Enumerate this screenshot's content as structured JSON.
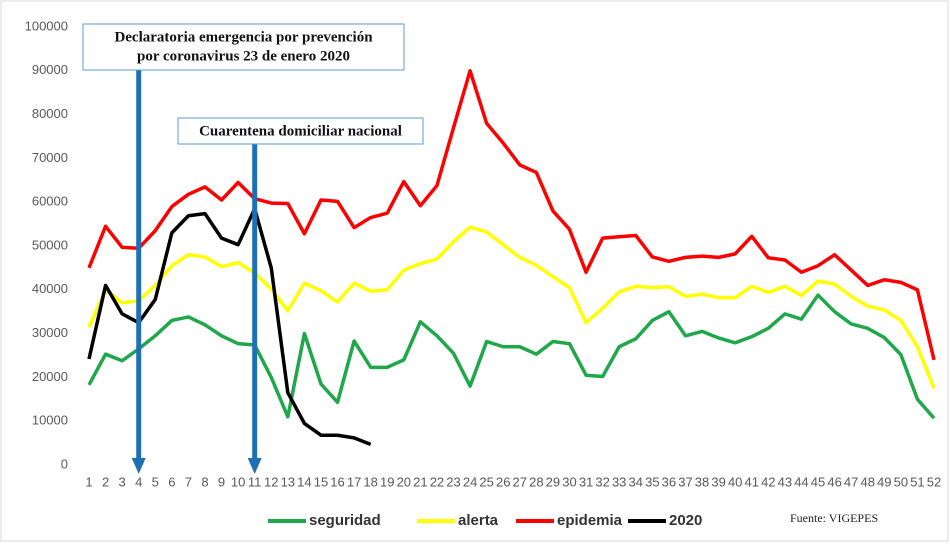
{
  "chart_data": {
    "type": "line",
    "x": [
      1,
      2,
      3,
      4,
      5,
      6,
      7,
      8,
      9,
      10,
      11,
      12,
      13,
      14,
      15,
      16,
      17,
      18,
      19,
      20,
      21,
      22,
      23,
      24,
      25,
      26,
      27,
      28,
      29,
      30,
      31,
      32,
      33,
      34,
      35,
      36,
      37,
      38,
      39,
      40,
      41,
      42,
      43,
      44,
      45,
      46,
      47,
      48,
      49,
      50,
      51,
      52
    ],
    "xlim": [
      1,
      52
    ],
    "xticks": [
      1,
      2,
      3,
      4,
      5,
      6,
      7,
      8,
      9,
      10,
      11,
      12,
      13,
      14,
      15,
      16,
      17,
      18,
      19,
      20,
      21,
      22,
      23,
      24,
      25,
      26,
      27,
      28,
      29,
      30,
      31,
      32,
      33,
      34,
      35,
      36,
      37,
      38,
      39,
      40,
      41,
      42,
      43,
      44,
      45,
      46,
      47,
      48,
      49,
      50,
      51,
      52
    ],
    "ylim": [
      0,
      100000
    ],
    "yticks": [
      0,
      10000,
      20000,
      30000,
      40000,
      50000,
      60000,
      70000,
      80000,
      90000,
      100000
    ],
    "series": [
      {
        "name": "seguridad",
        "color": "#1fa84a",
        "values": [
          18300,
          25300,
          23800,
          26500,
          29500,
          33000,
          33800,
          32000,
          29500,
          27700,
          27400,
          20000,
          11000,
          30000,
          18500,
          14300,
          28300,
          22300,
          22300,
          24000,
          32700,
          29500,
          25500,
          18000,
          28200,
          27000,
          27000,
          25300,
          28200,
          27700,
          20500,
          20200,
          27000,
          28800,
          33000,
          35000,
          29500,
          30500,
          29000,
          27900,
          29300,
          31200,
          34500,
          33300,
          38800,
          35000,
          32200,
          31200,
          29100,
          25200,
          15000,
          10700
        ]
      },
      {
        "name": "alerta",
        "color": "#ffff00",
        "values": [
          31500,
          40000,
          37000,
          37500,
          41000,
          45500,
          48000,
          47500,
          45300,
          46200,
          43800,
          40200,
          35200,
          41500,
          39800,
          37200,
          41500,
          39700,
          40000,
          44500,
          46000,
          47000,
          51000,
          54300,
          53200,
          50300,
          47400,
          45600,
          43000,
          40500,
          32500,
          35800,
          39500,
          40800,
          40500,
          40700,
          38500,
          39000,
          38200,
          38200,
          40800,
          39400,
          40800,
          38700,
          42000,
          41300,
          38500,
          36300,
          35400,
          33000,
          27000,
          17500
        ]
      },
      {
        "name": "epidemia",
        "color": "#ff0000",
        "values": [
          45000,
          54500,
          49700,
          49500,
          53500,
          59000,
          61800,
          63500,
          60500,
          64500,
          60800,
          59800,
          59700,
          52800,
          60500,
          60200,
          54200,
          56500,
          57500,
          64700,
          59200,
          63800,
          77000,
          90000,
          78000,
          73500,
          68500,
          66800,
          58000,
          53800,
          44000,
          51800,
          52100,
          52400,
          47500,
          46500,
          47400,
          47700,
          47400,
          48200,
          52200,
          47300,
          46800,
          44000,
          45500,
          48000,
          44500,
          41000,
          42300,
          41700,
          40000,
          24000
        ]
      },
      {
        "name": "2020",
        "color": "#000000",
        "values": [
          24200,
          41000,
          34500,
          32500,
          37800,
          53000,
          56900,
          57400,
          51800,
          50300,
          58500,
          45000,
          16500,
          9500,
          6800,
          6800,
          6200,
          4700,
          null,
          null,
          null,
          null,
          null,
          null,
          null,
          null,
          null,
          null,
          null,
          null,
          null,
          null,
          null,
          null,
          null,
          null,
          null,
          null,
          null,
          null,
          null,
          null,
          null,
          null,
          null,
          null,
          null,
          null,
          null,
          null,
          null,
          null
        ]
      }
    ],
    "annotations": [
      {
        "lines": [
          "Declaratoria emergencia por prevención",
          "por coronavirus 23 de enero 2020"
        ],
        "x": 4
      },
      {
        "lines": [
          "Cuarentena domiciliar nacional"
        ],
        "x": 11
      }
    ],
    "source": "Fuente: VIGEPES",
    "grid": false
  }
}
